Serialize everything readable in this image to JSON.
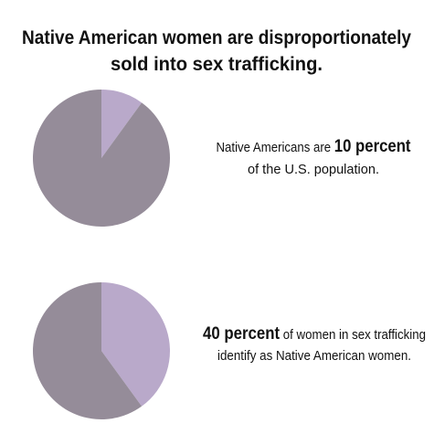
{
  "title": [
    "Native American women are disproportionately",
    "sold into sex trafficking."
  ],
  "chart_data": [
    {
      "type": "pie",
      "values": [
        10,
        90
      ],
      "colors": [
        "#b9a9ca",
        "#958c99"
      ],
      "caption": [
        [
          {
            "text": "Native Americans are ",
            "bold": false
          },
          {
            "text": "10 percent",
            "bold": true
          }
        ],
        [
          {
            "text": "of the U.S. population.",
            "bold": false
          }
        ]
      ]
    },
    {
      "type": "pie",
      "values": [
        40,
        60
      ],
      "colors": [
        "#b9a9ca",
        "#958c99"
      ],
      "caption": [
        [
          {
            "text": "40 percent",
            "bold": true
          },
          {
            "text": " of women in sex trafficking",
            "bold": false
          }
        ],
        [
          {
            "text": "identify as Native American women.",
            "bold": false
          }
        ]
      ]
    }
  ]
}
